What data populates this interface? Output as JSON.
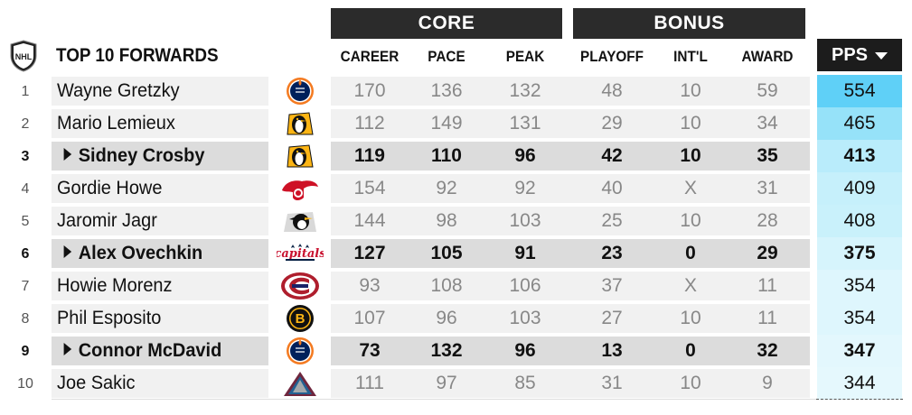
{
  "header": {
    "title": "TOP 10 FORWARDS",
    "groups": {
      "core": "CORE",
      "bonus": "BONUS"
    },
    "columns": {
      "career": "CAREER",
      "pace": "PACE",
      "peak": "PEAK",
      "playoff": "PLAYOFF",
      "intl": "INT'L",
      "award": "AWARD",
      "pps": "PPS"
    },
    "league_logo_text": "NHL"
  },
  "colors": {
    "header_bg": "#2b2b2b",
    "pps_header_bg": "#1c1c1c",
    "highlight_row": "#dcdcdc",
    "pps_scale": [
      "#5fd0f7",
      "#96e2f9",
      "#b9ecfb",
      "#c6f0fb",
      "#c9f1fb",
      "#d6f4fc",
      "#def6fd",
      "#def6fd",
      "#e3f7fd",
      "#e5f8fd"
    ]
  },
  "rows": [
    {
      "rank": "1",
      "name": "Wayne Gretzky",
      "team_icon": "oilers-logo",
      "career": "170",
      "pace": "136",
      "peak": "132",
      "playoff": "48",
      "intl": "10",
      "award": "59",
      "pps": "554",
      "highlight": false
    },
    {
      "rank": "2",
      "name": "Mario Lemieux",
      "team_icon": "penguins-logo",
      "career": "112",
      "pace": "149",
      "peak": "131",
      "playoff": "29",
      "intl": "10",
      "award": "34",
      "pps": "465",
      "highlight": false
    },
    {
      "rank": "3",
      "name": "Sidney Crosby",
      "team_icon": "penguins-logo",
      "career": "119",
      "pace": "110",
      "peak": "96",
      "playoff": "42",
      "intl": "10",
      "award": "35",
      "pps": "413",
      "highlight": true
    },
    {
      "rank": "4",
      "name": "Gordie Howe",
      "team_icon": "red-wings-logo",
      "career": "154",
      "pace": "92",
      "peak": "92",
      "playoff": "40",
      "intl": "X",
      "award": "31",
      "pps": "409",
      "highlight": false
    },
    {
      "rank": "5",
      "name": "Jaromir Jagr",
      "team_icon": "penguins-alt-logo",
      "career": "144",
      "pace": "98",
      "peak": "103",
      "playoff": "25",
      "intl": "10",
      "award": "28",
      "pps": "408",
      "highlight": false
    },
    {
      "rank": "6",
      "name": "Alex Ovechkin",
      "team_icon": "capitals-logo",
      "career": "127",
      "pace": "105",
      "peak": "91",
      "playoff": "23",
      "intl": "0",
      "award": "29",
      "pps": "375",
      "highlight": true
    },
    {
      "rank": "7",
      "name": "Howie Morenz",
      "team_icon": "canadiens-logo",
      "career": "93",
      "pace": "108",
      "peak": "106",
      "playoff": "37",
      "intl": "X",
      "award": "11",
      "pps": "354",
      "highlight": false
    },
    {
      "rank": "8",
      "name": "Phil Esposito",
      "team_icon": "bruins-logo",
      "career": "107",
      "pace": "96",
      "peak": "103",
      "playoff": "27",
      "intl": "10",
      "award": "11",
      "pps": "354",
      "highlight": false
    },
    {
      "rank": "9",
      "name": "Connor McDavid",
      "team_icon": "oilers-logo",
      "career": "73",
      "pace": "132",
      "peak": "96",
      "playoff": "13",
      "intl": "0",
      "award": "32",
      "pps": "347",
      "highlight": true
    },
    {
      "rank": "10",
      "name": "Joe Sakic",
      "team_icon": "avalanche-logo",
      "career": "111",
      "pace": "97",
      "peak": "85",
      "playoff": "31",
      "intl": "10",
      "award": "9",
      "pps": "344",
      "highlight": false
    }
  ]
}
